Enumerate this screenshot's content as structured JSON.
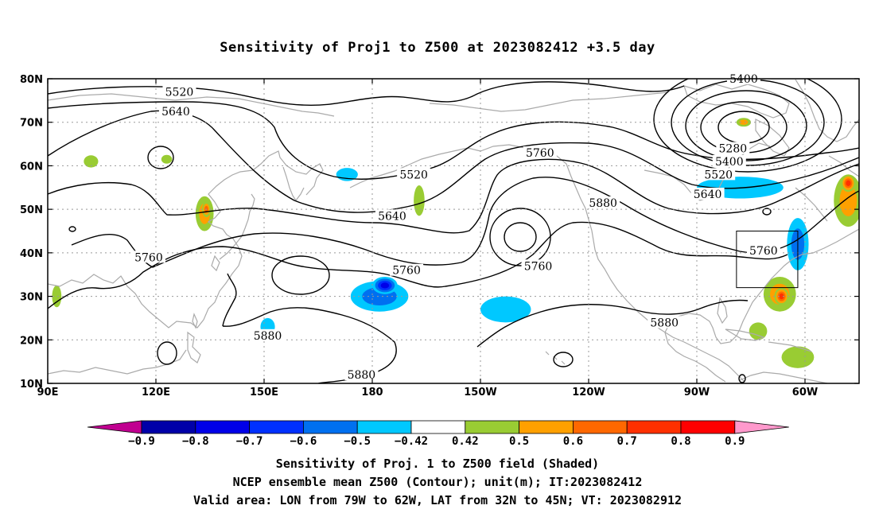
{
  "title": "Sensitivity of Proj1 to Z500 at 2023082412 +3.5 day",
  "map": {
    "lon_ticks": [
      {
        "lon": 90,
        "label": "90E"
      },
      {
        "lon": 120,
        "label": "120E"
      },
      {
        "lon": 150,
        "label": "150E"
      },
      {
        "lon": 180,
        "label": "180"
      },
      {
        "lon": 210,
        "label": "150W"
      },
      {
        "lon": 240,
        "label": "120W"
      },
      {
        "lon": 270,
        "label": "90W"
      },
      {
        "lon": 300,
        "label": "60W"
      }
    ],
    "lat_ticks": [
      {
        "lat": 80,
        "label": "80N"
      },
      {
        "lat": 70,
        "label": "70N"
      },
      {
        "lat": 60,
        "label": "60N"
      },
      {
        "lat": 50,
        "label": "50N"
      },
      {
        "lat": 40,
        "label": "40N"
      },
      {
        "lat": 30,
        "label": "30N"
      },
      {
        "lat": 20,
        "label": "20N"
      },
      {
        "lat": 10,
        "label": "10N"
      }
    ],
    "lon_range": [
      90,
      315
    ],
    "lat_range": [
      10,
      80
    ],
    "grid": "dotted",
    "valid_area": {
      "lon_w": 79,
      "lon_e": 62,
      "lat_s": 32,
      "lat_n": 45
    },
    "contour_labels": [
      {
        "text": "5520",
        "lon": 126.5,
        "lat": 77.0
      },
      {
        "text": "5640",
        "lon": 125.5,
        "lat": 72.5
      },
      {
        "text": "5760",
        "lon": 118.0,
        "lat": 39.0
      },
      {
        "text": "5880",
        "lon": 151.0,
        "lat": 21.0
      },
      {
        "text": "5880",
        "lon": 177.0,
        "lat": 12.0
      },
      {
        "text": "5520",
        "lon": 191.5,
        "lat": 58.0
      },
      {
        "text": "5640",
        "lon": 185.5,
        "lat": 48.5
      },
      {
        "text": "5760",
        "lon": 189.5,
        "lat": 36.0
      },
      {
        "text": "5760",
        "lon": 226.5,
        "lat": 63.0
      },
      {
        "text": "5760",
        "lon": 226.0,
        "lat": 37.0
      },
      {
        "text": "5880",
        "lon": 244.0,
        "lat": 51.5
      },
      {
        "text": "5880",
        "lon": 261.0,
        "lat": 24.0
      },
      {
        "text": "5400",
        "lon": 283.0,
        "lat": 80.0
      },
      {
        "text": "5280",
        "lon": 280.0,
        "lat": 64.0
      },
      {
        "text": "5400",
        "lon": 279.0,
        "lat": 61.0
      },
      {
        "text": "5520",
        "lon": 276.0,
        "lat": 58.0
      },
      {
        "text": "5640",
        "lon": 273.0,
        "lat": 53.5
      },
      {
        "text": "5760",
        "lon": 288.5,
        "lat": 40.5
      }
    ],
    "shaded_regions": [
      {
        "lon": 182,
        "lat": 30,
        "rx": 8,
        "ry": 3.5,
        "sign": -1,
        "level": 0.6
      },
      {
        "lon": 183.5,
        "lat": 32.5,
        "rx": 3.5,
        "ry": 2,
        "sign": -1,
        "level": 0.8
      },
      {
        "lon": 217,
        "lat": 27,
        "rx": 7,
        "ry": 3,
        "sign": -1,
        "level": 0.5
      },
      {
        "lon": 173,
        "lat": 58,
        "rx": 3,
        "ry": 1.5,
        "sign": -1,
        "level": 0.5
      },
      {
        "lon": 282,
        "lat": 55,
        "rx": 12,
        "ry": 2.5,
        "sign": -1,
        "level": 0.5
      },
      {
        "lon": 298,
        "lat": 42,
        "rx": 3,
        "ry": 6,
        "sign": -1,
        "level": 0.6
      },
      {
        "lon": 151,
        "lat": 23,
        "rx": 2,
        "ry": 2,
        "sign": -1,
        "level": 0.5
      },
      {
        "lon": 133.5,
        "lat": 49,
        "rx": 2.5,
        "ry": 4,
        "sign": 1,
        "level": 0.6
      },
      {
        "lon": 134,
        "lat": 50,
        "rx": 1.2,
        "ry": 1.8,
        "sign": 1,
        "level": 0.7
      },
      {
        "lon": 102,
        "lat": 61,
        "rx": 2,
        "ry": 1.4,
        "sign": 1,
        "level": 0.5
      },
      {
        "lon": 123,
        "lat": 61.5,
        "rx": 1.5,
        "ry": 1,
        "sign": 1,
        "level": 0.5
      },
      {
        "lon": 193,
        "lat": 52,
        "rx": 1.5,
        "ry": 3.5,
        "sign": 1,
        "level": 0.5
      },
      {
        "lon": 293,
        "lat": 30.5,
        "rx": 4.5,
        "ry": 4,
        "sign": 1,
        "level": 0.6
      },
      {
        "lon": 293.5,
        "lat": 30,
        "rx": 2,
        "ry": 2,
        "sign": 1,
        "level": 0.8
      },
      {
        "lon": 298,
        "lat": 16,
        "rx": 4.5,
        "ry": 2.5,
        "sign": 1,
        "level": 0.5
      },
      {
        "lon": 312,
        "lat": 52,
        "rx": 4,
        "ry": 6,
        "sign": 1,
        "level": 0.6
      },
      {
        "lon": 312,
        "lat": 56,
        "rx": 2,
        "ry": 2,
        "sign": 1,
        "level": 0.8
      },
      {
        "lon": 92.5,
        "lat": 30,
        "rx": 1.3,
        "ry": 2.5,
        "sign": 1,
        "level": 0.5
      },
      {
        "lon": 283,
        "lat": 70,
        "rx": 2,
        "ry": 1,
        "sign": 1,
        "level": 0.6
      },
      {
        "lon": 287,
        "lat": 22,
        "rx": 2.5,
        "ry": 2,
        "sign": 1,
        "level": 0.5
      }
    ]
  },
  "colorbar": {
    "colors": [
      "#c00090",
      "#0000a8",
      "#0000e8",
      "#0030ff",
      "#0070f0",
      "#00c8ff",
      "#ffffff",
      "#99cc33",
      "#ffa000",
      "#ff6800",
      "#ff3000",
      "#ff0000",
      "#ff99cc"
    ],
    "labels": [
      "−0.9",
      "−0.8",
      "−0.7",
      "−0.6",
      "−0.5",
      "−0.42",
      "0.42",
      "0.5",
      "0.6",
      "0.7",
      "0.8",
      "0.9"
    ]
  },
  "captions": {
    "line1": "Sensitivity of Proj. 1 to Z500 field (Shaded)",
    "line2": "NCEP ensemble mean Z500 (Contour); unit(m); IT:2023082412",
    "line3": "Valid area: LON from 79W to 62W, LAT from 32N to 45N; VT: 2023082912"
  },
  "colors": {
    "coast": "#aaaaaa",
    "contour": "#000000",
    "grid": "#999999"
  }
}
